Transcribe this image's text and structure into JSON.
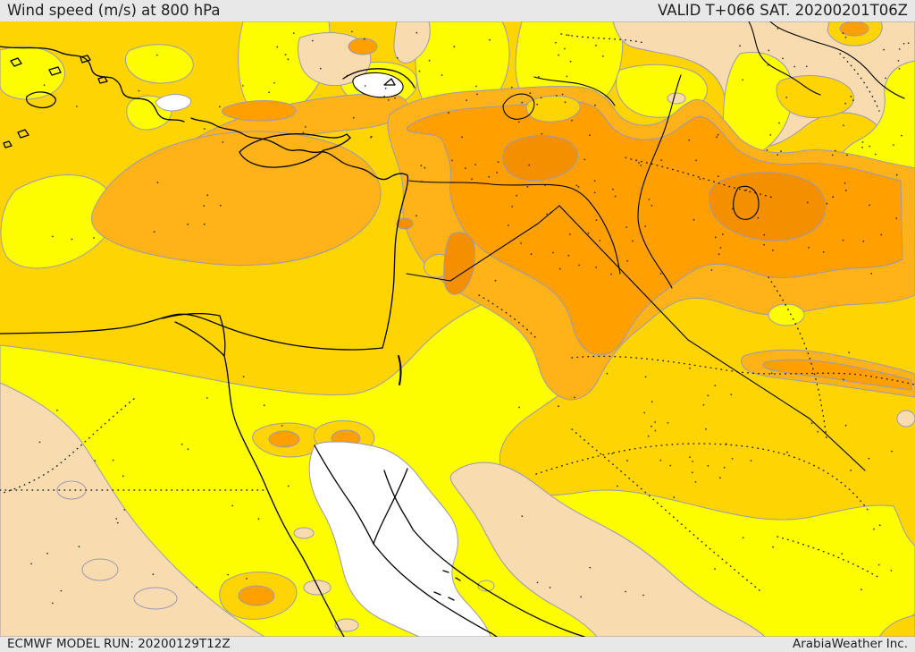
{
  "header": {
    "title": "Wind speed (m/s) at 800 hPa",
    "valid_label": "VALID T+066 SAT. 20200201T06Z"
  },
  "footer": {
    "model_run": "ECMWF MODEL RUN: 20200129T12Z",
    "brand": "ArabiaWeather Inc."
  },
  "map": {
    "variable": "Wind speed (m/s)",
    "level": "800 hPa",
    "model": "ECMWF",
    "lead_time": "T+066",
    "valid_time": "SAT. 20200201T06Z",
    "run_time": "20200129T12Z",
    "palette": {
      "band_white": "#ffffff",
      "band_tan": "#f8dcb0",
      "band_yellow": "#fdfd00",
      "band_gold": "#ffd400",
      "band_amber": "#ffb319",
      "band_orange": "#ff9f00",
      "band_deep_orange": "#f49000",
      "contour_line": "#9b98b8",
      "geo_line": "#000000",
      "header_bg": "#e8e8e8",
      "header_text": "#1f1f1f"
    }
  }
}
